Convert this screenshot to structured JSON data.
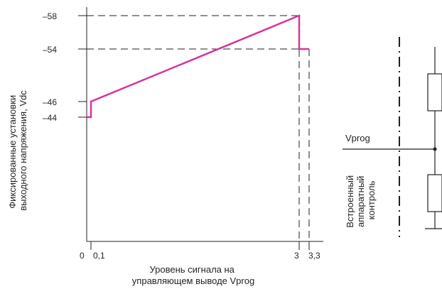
{
  "chart_data": {
    "type": "line",
    "xlabel": [
      "Уровень сигнала на",
      "управляющем выводе Vprog"
    ],
    "ylabel": [
      "Фиксированные установки",
      "выходного напряжения, Vdc"
    ],
    "x_ticks": [
      "0",
      "0,1",
      "3",
      "3,3"
    ],
    "y_ticks": [
      "–58",
      "–54",
      "–46",
      "–44"
    ],
    "xlim": [
      0,
      3.5
    ],
    "ylim": [
      -20,
      -59
    ],
    "grid": false,
    "series": [
      {
        "color": "#d6359a",
        "points": [
          [
            0,
            -44
          ],
          [
            0.1,
            -44
          ],
          [
            0.1,
            -46
          ],
          [
            3,
            -58
          ],
          [
            3,
            -54
          ],
          [
            3.3,
            -54
          ]
        ]
      }
    ],
    "reference_lines": [
      {
        "kind": "horizontal",
        "y": -58,
        "x_to": 3
      },
      {
        "kind": "horizontal",
        "y": -54,
        "x_to": 3.3
      },
      {
        "kind": "vertical",
        "x": 3,
        "y_from": -58
      },
      {
        "kind": "vertical",
        "x": 3.3,
        "y_from": -54
      }
    ]
  },
  "schematic": {
    "input_label": "Vprog",
    "block_label": [
      "Встроенный",
      "аппаратный",
      "контроль"
    ]
  },
  "colors": {
    "curve": "#d6359a",
    "ink": "#231f20"
  }
}
